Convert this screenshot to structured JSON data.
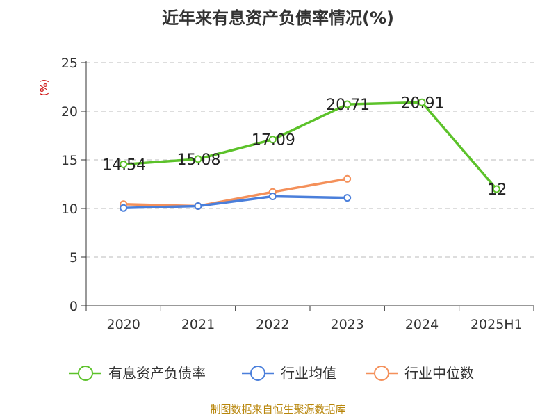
{
  "title": "近年来有息资产负债率情况(%)",
  "source": "制图数据来自恒生聚源数据库",
  "chart_data": {
    "type": "line",
    "ylabel": "(%)",
    "ylim": [
      0,
      25
    ],
    "yticks": [
      0,
      5,
      10,
      15,
      20,
      25
    ],
    "categories": [
      "2020",
      "2021",
      "2022",
      "2023",
      "2024",
      "2025H1"
    ],
    "grid": true,
    "legend_position": "bottom",
    "series": [
      {
        "name": "有息资产负债率",
        "color": "#5cc22a",
        "values": [
          14.54,
          15.08,
          17.09,
          20.71,
          20.91,
          12
        ],
        "labels": [
          "14.54",
          "15.08",
          "17.09",
          "20.71",
          "20.91",
          "12"
        ],
        "show_labels": true
      },
      {
        "name": "行业均值",
        "color": "#4a7fdb",
        "values": [
          10.05,
          10.25,
          11.25,
          11.1,
          null,
          null
        ],
        "show_labels": false
      },
      {
        "name": "行业中位数",
        "color": "#f4905a",
        "values": [
          10.45,
          10.25,
          11.7,
          13.05,
          null,
          null
        ],
        "show_labels": false
      }
    ]
  }
}
